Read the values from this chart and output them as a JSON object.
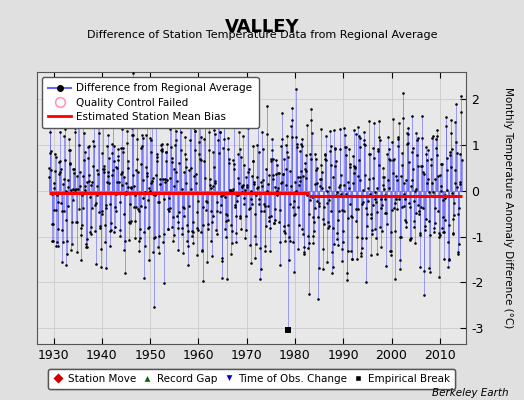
{
  "title": "VALLEY",
  "subtitle": "Difference of Station Temperature Data from Regional Average",
  "ylabel": "Monthly Temperature Anomaly Difference (°C)",
  "xlabel_ticks": [
    1930,
    1940,
    1950,
    1960,
    1970,
    1980,
    1990,
    2000,
    2010
  ],
  "xlim": [
    1926.5,
    2015.5
  ],
  "ylim": [
    -3.35,
    2.6
  ],
  "yticks": [
    -3,
    -2,
    -1,
    0,
    1,
    2
  ],
  "bias_value_early": -0.05,
  "bias_value_late": -0.12,
  "bias_break_year": 1983.0,
  "empirical_break_year": 1978.5,
  "background_color": "#e0e0e0",
  "plot_bg_color": "#e8e8e8",
  "line_color": "#6666ff",
  "dot_color": "#000000",
  "bias_color": "#ff0000",
  "seed": 42,
  "start_year": 1929.0,
  "end_year": 2014.5,
  "months_per_year": 12
}
